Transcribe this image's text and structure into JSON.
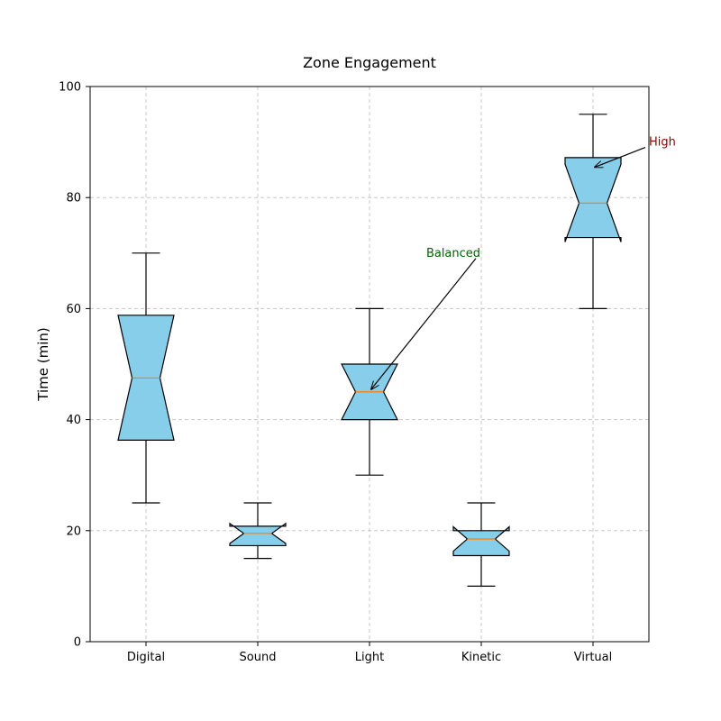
{
  "chart_data": {
    "type": "boxplot",
    "title": "Zone Engagement",
    "xlabel": "",
    "ylabel": "Time (min)",
    "ylim": [
      0,
      100
    ],
    "yticks": [
      0,
      20,
      40,
      60,
      80,
      100
    ],
    "grid": true,
    "notched": true,
    "categories": [
      "Digital",
      "Sound",
      "Light",
      "Kinetic",
      "Virtual"
    ],
    "boxes": [
      {
        "category": "Digital",
        "whisker_low": 25,
        "q1": 36.3,
        "median": 47.5,
        "q3": 58.8,
        "whisker_high": 70,
        "notch_low": 36.3,
        "notch_high": 58.8
      },
      {
        "category": "Sound",
        "whisker_low": 15,
        "q1": 17.3,
        "median": 19.5,
        "q3": 20.8,
        "whisker_high": 25,
        "notch_low": 17.7,
        "notch_high": 21.3
      },
      {
        "category": "Light",
        "whisker_low": 30,
        "q1": 40,
        "median": 45,
        "q3": 50,
        "whisker_high": 60,
        "notch_low": 40,
        "notch_high": 50
      },
      {
        "category": "Kinetic",
        "whisker_low": 10,
        "q1": 15.5,
        "median": 18.5,
        "q3": 20,
        "whisker_high": 25,
        "notch_low": 16.3,
        "notch_high": 20.7
      },
      {
        "category": "Virtual",
        "whisker_low": 60,
        "q1": 72.8,
        "median": 79,
        "q3": 87.2,
        "whisker_high": 95,
        "notch_low": 72,
        "notch_high": 86
      }
    ],
    "annotations": [
      {
        "text": "Balanced",
        "target_category": "Light",
        "target_y": 45,
        "text_category_offset": 0.75,
        "text_y": 70,
        "color": "#006400"
      },
      {
        "text": "High",
        "target_category": "Virtual",
        "target_y": 85,
        "text_category_offset": 0.5,
        "text_y": 90,
        "color": "#8b0000"
      }
    ],
    "colors": {
      "box_fill": "#87ceeb",
      "box_edge": "#000000",
      "median": "#ff7f0e",
      "grid": "#c8c8c8"
    }
  }
}
